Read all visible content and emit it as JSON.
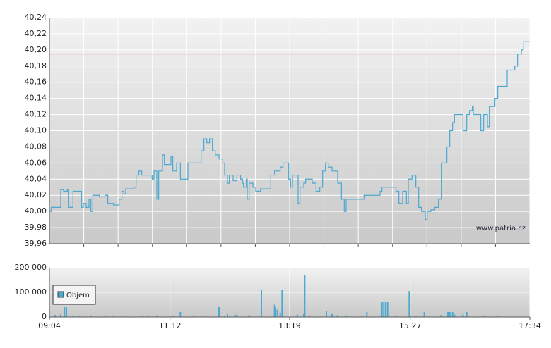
{
  "chart_data": [
    {
      "type": "line",
      "step": true,
      "color": "#4ba8d0",
      "grid": true,
      "annotation": "www.patria.cz",
      "reference_line": 40.195,
      "reference_color": "#e04848",
      "xlim": [
        "09:04",
        "17:34"
      ],
      "ylim": [
        39.96,
        40.24
      ],
      "yticks": [
        {
          "value": 39.96,
          "label": "39,96"
        },
        {
          "value": 39.98,
          "label": "39,98"
        },
        {
          "value": 40.0,
          "label": "40,00"
        },
        {
          "value": 40.02,
          "label": "40,02"
        },
        {
          "value": 40.04,
          "label": "40,04"
        },
        {
          "value": 40.06,
          "label": "40,06"
        },
        {
          "value": 40.08,
          "label": "40,08"
        },
        {
          "value": 40.1,
          "label": "40,10"
        },
        {
          "value": 40.12,
          "label": "40,12"
        },
        {
          "value": 40.14,
          "label": "40,14"
        },
        {
          "value": 40.16,
          "label": "40,16"
        },
        {
          "value": 40.18,
          "label": "40,18"
        },
        {
          "value": 40.2,
          "label": "40,20"
        },
        {
          "value": 40.22,
          "label": "40,22"
        },
        {
          "value": 40.24,
          "label": "40,24"
        }
      ],
      "x": [
        "09:04",
        "09:06",
        "09:14",
        "09:16",
        "09:19",
        "09:23",
        "09:24",
        "09:26",
        "09:29",
        "09:36",
        "09:38",
        "09:40",
        "09:43",
        "09:46",
        "09:48",
        "09:50",
        "09:57",
        "10:03",
        "10:06",
        "10:12",
        "10:16",
        "10:18",
        "10:21",
        "10:23",
        "10:25",
        "10:30",
        "10:34",
        "10:36",
        "10:39",
        "10:42",
        "10:49",
        "10:53",
        "10:55",
        "10:58",
        "11:00",
        "11:04",
        "11:06",
        "11:12",
        "11:13",
        "11:15",
        "11:19",
        "11:23",
        "11:29",
        "11:31",
        "11:42",
        "11:45",
        "11:48",
        "11:51",
        "11:54",
        "11:57",
        "12:00",
        "12:04",
        "12:08",
        "12:10",
        "12:13",
        "12:15",
        "12:19",
        "12:23",
        "12:27",
        "12:29",
        "12:30",
        "12:33",
        "12:34",
        "12:36",
        "12:40",
        "12:43",
        "12:48",
        "12:57",
        "12:59",
        "13:03",
        "13:06",
        "13:09",
        "13:12",
        "13:15",
        "13:18",
        "13:20",
        "13:22",
        "13:27",
        "13:28",
        "13:30",
        "13:34",
        "13:36",
        "13:40",
        "13:43",
        "13:47",
        "13:51",
        "13:54",
        "13:57",
        "14:00",
        "14:04",
        "14:10",
        "14:14",
        "14:17",
        "14:19",
        "14:36",
        "14:38",
        "14:49",
        "14:55",
        "14:57",
        "15:12",
        "15:15",
        "15:19",
        "15:23",
        "15:25",
        "15:29",
        "15:33",
        "15:36",
        "15:39",
        "15:43",
        "15:45",
        "15:49",
        "15:53",
        "15:57",
        "16:00",
        "16:06",
        "16:09",
        "16:12",
        "16:14",
        "16:19",
        "16:23",
        "16:27",
        "16:30",
        "16:33",
        "16:34",
        "16:38",
        "16:42",
        "16:45",
        "16:49",
        "16:51",
        "16:57",
        "17:00",
        "17:10",
        "17:18",
        "17:21",
        "17:25",
        "17:27",
        "17:34"
      ],
      "values": [
        40.0,
        40.005,
        40.005,
        40.027,
        40.025,
        40.027,
        40.005,
        40.005,
        40.025,
        40.025,
        40.005,
        40.01,
        40.005,
        40.015,
        40.0,
        40.02,
        40.018,
        40.02,
        40.01,
        40.008,
        40.008,
        40.015,
        40.025,
        40.022,
        40.028,
        40.028,
        40.03,
        40.045,
        40.05,
        40.045,
        40.045,
        40.04,
        40.05,
        40.015,
        40.05,
        40.07,
        40.058,
        40.058,
        40.068,
        40.05,
        40.06,
        40.04,
        40.04,
        40.06,
        40.06,
        40.075,
        40.09,
        40.085,
        40.09,
        40.075,
        40.07,
        40.065,
        40.06,
        40.045,
        40.035,
        40.045,
        40.038,
        40.045,
        40.04,
        40.035,
        40.03,
        40.04,
        40.015,
        40.035,
        40.03,
        40.025,
        40.028,
        40.028,
        40.045,
        40.05,
        40.05,
        40.055,
        40.06,
        40.06,
        40.04,
        40.03,
        40.045,
        40.045,
        40.01,
        40.03,
        40.035,
        40.04,
        40.04,
        40.035,
        40.025,
        40.03,
        40.05,
        40.06,
        40.055,
        40.05,
        40.035,
        40.015,
        40.0,
        40.015,
        40.015,
        40.02,
        40.02,
        40.025,
        40.03,
        40.025,
        40.01,
        40.025,
        40.01,
        40.04,
        40.045,
        40.03,
        40.005,
        40.0,
        39.99,
        40.0,
        40.002,
        40.005,
        40.015,
        40.06,
        40.08,
        40.1,
        40.11,
        40.12,
        40.12,
        40.1,
        40.12,
        40.125,
        40.13,
        40.12,
        40.12,
        40.1,
        40.12,
        40.105,
        40.13,
        40.14,
        40.155,
        40.175,
        40.18,
        40.195,
        40.2,
        40.21,
        40.21
      ]
    },
    {
      "type": "bar",
      "grid": true,
      "xlim": [
        "09:04",
        "17:34"
      ],
      "xticks": [
        "09:04",
        "11:12",
        "13:19",
        "15:27",
        "17:34"
      ],
      "ylim": [
        0,
        200000
      ],
      "yticks": [
        0,
        {
          "value": 100000,
          "label": "100 000"
        },
        {
          "value": 200000,
          "label": "200 000"
        }
      ],
      "series": [
        {
          "name": "Objem",
          "color": "#4ba8d0",
          "x": [
            "09:10",
            "09:16",
            "09:20",
            "09:22",
            "09:29",
            "09:36",
            "09:48",
            "10:03",
            "10:12",
            "10:25",
            "10:42",
            "10:49",
            "10:58",
            "11:15",
            "11:23",
            "11:37",
            "11:50",
            "12:04",
            "12:10",
            "12:13",
            "12:21",
            "12:23",
            "12:36",
            "12:49",
            "13:03",
            "13:04",
            "13:06",
            "13:09",
            "13:11",
            "13:27",
            "13:34",
            "13:35",
            "13:40",
            "13:58",
            "14:04",
            "14:10",
            "14:19",
            "14:36",
            "14:41",
            "14:57",
            "14:59",
            "15:01",
            "15:03",
            "15:12",
            "15:26",
            "15:33",
            "15:42",
            "16:00",
            "16:07",
            "16:09",
            "16:12",
            "16:14",
            "16:23",
            "16:27",
            "16:45",
            "17:00"
          ],
          "values": [
            8000,
            10000,
            40000,
            40000,
            5000,
            5000,
            4000,
            3000,
            3000,
            4000,
            3000,
            5000,
            4000,
            5000,
            20000,
            5000,
            3000,
            40000,
            5000,
            12000,
            8000,
            10000,
            8000,
            110000,
            50000,
            40000,
            30000,
            15000,
            110000,
            10000,
            12000,
            170000,
            5000,
            25000,
            12000,
            8000,
            5000,
            5000,
            20000,
            60000,
            60000,
            60000,
            60000,
            5000,
            105000,
            5000,
            20000,
            8000,
            20000,
            20000,
            20000,
            10000,
            10000,
            20000,
            5000,
            4000
          ]
        }
      ]
    }
  ]
}
